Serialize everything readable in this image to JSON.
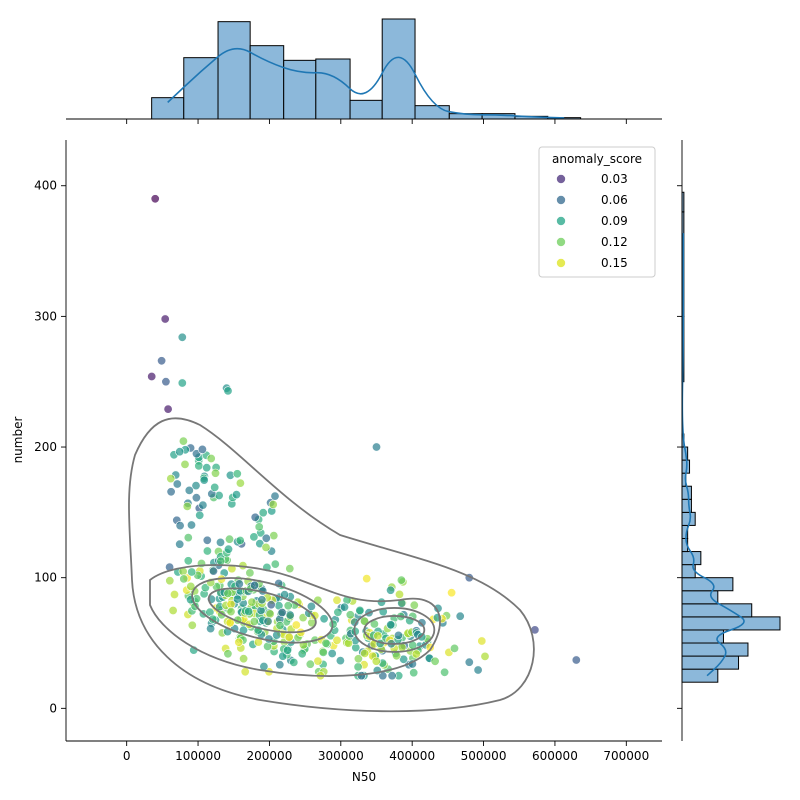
{
  "chart_data": {
    "type": "scatter",
    "subtype": "jointplot with marginal histograms, KDE marginals and KDE contour overlay",
    "xlabel": "N50",
    "ylabel": "number",
    "xlim": [
      -85000,
      750000
    ],
    "ylim": [
      -25,
      435
    ],
    "x_ticks": [
      0,
      100000,
      200000,
      300000,
      400000,
      500000,
      600000,
      700000
    ],
    "x_tick_labels": [
      "0",
      "100000",
      "200000",
      "300000",
      "400000",
      "500000",
      "600000",
      "700000"
    ],
    "y_ticks": [
      0,
      100,
      200,
      300,
      400
    ],
    "y_tick_labels": [
      "0",
      "100",
      "200",
      "300",
      "400"
    ],
    "hue": "anomaly_score",
    "colormap": "viridis",
    "hue_range": [
      0.02,
      0.16
    ],
    "legend": {
      "title": "anomaly_score",
      "placement": "top-right",
      "entries": [
        {
          "label": "0.03",
          "value": 0.03,
          "color": "#472c7a"
        },
        {
          "label": "0.06",
          "value": 0.06,
          "color": "#31688e"
        },
        {
          "label": "0.09",
          "value": 0.09,
          "color": "#20a486"
        },
        {
          "label": "0.12",
          "value": 0.12,
          "color": "#6ccd5a"
        },
        {
          "label": "0.15",
          "value": 0.15,
          "color": "#dce319"
        }
      ]
    },
    "points_note": "approximately 500 points; notable outliers listed below, remaining cloud concentrated in the dense regions",
    "outliers": [
      {
        "x": 40000,
        "y": 390,
        "score": 0.02
      },
      {
        "x": 54000,
        "y": 298,
        "score": 0.03
      },
      {
        "x": 35000,
        "y": 254,
        "score": 0.03
      },
      {
        "x": 58000,
        "y": 229,
        "score": 0.03
      },
      {
        "x": 49000,
        "y": 266,
        "score": 0.06
      },
      {
        "x": 78000,
        "y": 284,
        "score": 0.09
      },
      {
        "x": 55000,
        "y": 250,
        "score": 0.06
      },
      {
        "x": 140000,
        "y": 245,
        "score": 0.09
      },
      {
        "x": 142000,
        "y": 243,
        "score": 0.1
      },
      {
        "x": 78000,
        "y": 249,
        "score": 0.1
      },
      {
        "x": 350000,
        "y": 200,
        "score": 0.08
      },
      {
        "x": 630000,
        "y": 37,
        "score": 0.06
      },
      {
        "x": 572000,
        "y": 60,
        "score": 0.05
      },
      {
        "x": 480000,
        "y": 100,
        "score": 0.06
      }
    ],
    "top_histogram": {
      "bin_edges": [
        35000,
        80000,
        128000,
        173000,
        220000,
        265000,
        313000,
        358000,
        404000,
        452000,
        498000,
        544000,
        590000,
        636000
      ],
      "counts": [
        16,
        46,
        73,
        55,
        44,
        45,
        14,
        75,
        10,
        4,
        4,
        2,
        1
      ]
    },
    "right_histogram": {
      "bin_edges": [
        20,
        30,
        40,
        50,
        60,
        70,
        80,
        90,
        100,
        110,
        120,
        130,
        140,
        150,
        160,
        170,
        180,
        190,
        200,
        210,
        250,
        300,
        380,
        395
      ],
      "counts": [
        19,
        30,
        35,
        22,
        52,
        37,
        19,
        27,
        7,
        10,
        3,
        3,
        7,
        5,
        5,
        2,
        4,
        3,
        1,
        0,
        1,
        1,
        1
      ]
    },
    "colors": {
      "histogram_fill": "#8cb8da",
      "histogram_edge": "#000000",
      "kde_line": "#1f77b4",
      "contour": "#777777",
      "axis": "#000000"
    }
  }
}
